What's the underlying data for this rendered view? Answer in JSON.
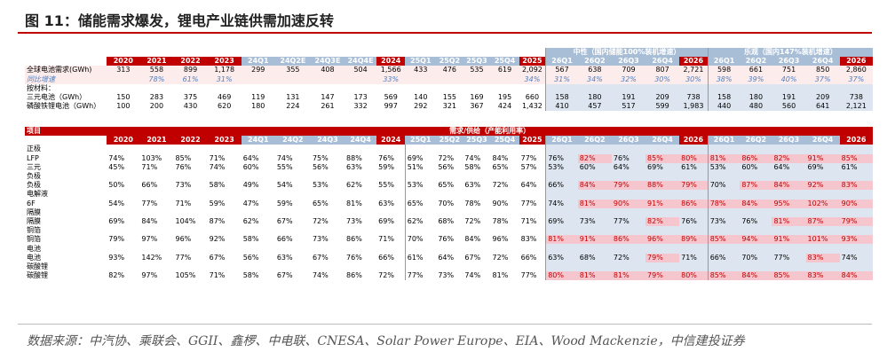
{
  "header": {
    "title": "图 11：储能需求爆发，锂电产业链供需加速反转"
  },
  "table1": {
    "group_headers": [
      "中性（国内储能100%装机增速）",
      "乐观（国内147%装机增速）"
    ],
    "columns": [
      "2020",
      "2021",
      "2022",
      "2023",
      "24Q1",
      "24Q2E",
      "24Q3E",
      "24Q4E",
      "2024",
      "25Q1",
      "25Q2",
      "25Q3",
      "25Q4",
      "2025",
      "26Q1",
      "26Q2",
      "26Q3",
      "26Q4",
      "2026",
      "26Q1",
      "26Q2",
      "26Q3",
      "26Q4",
      "2026"
    ],
    "year_columns": [
      0,
      1,
      2,
      3,
      8,
      13,
      18,
      23
    ],
    "rows": [
      {
        "label": "全球电池需求(GWh)",
        "cells": [
          "313",
          "558",
          "899",
          "1,178",
          "299",
          "355",
          "408",
          "504",
          "1,566",
          "433",
          "476",
          "535",
          "619",
          "2,092",
          "567",
          "638",
          "709",
          "807",
          "2,721",
          "598",
          "661",
          "751",
          "850",
          "2,860"
        ]
      },
      {
        "label": "同比增速",
        "cells": [
          null,
          "78%",
          "61%",
          "31%",
          null,
          null,
          null,
          null,
          "33%",
          null,
          null,
          null,
          null,
          "34%",
          "31%",
          "34%",
          "32%",
          "30%",
          "30%",
          "38%",
          "39%",
          "40%",
          "37%",
          "37%"
        ]
      },
      {
        "label": "按材料："
      },
      {
        "label": "三元电池（GWh）",
        "cells": [
          "150",
          "283",
          "375",
          "469",
          "119",
          "131",
          "147",
          "173",
          "569",
          "140",
          "155",
          "169",
          "195",
          "660",
          "158",
          "180",
          "191",
          "209",
          "738",
          "158",
          "180",
          "191",
          "209",
          "738"
        ]
      },
      {
        "label": "磷酸铁锂电池（GWh）",
        "cells": [
          "100",
          "200",
          "430",
          "620",
          "180",
          "224",
          "261",
          "332",
          "997",
          "292",
          "321",
          "367",
          "424",
          "1,432",
          "410",
          "457",
          "517",
          "599",
          "1,983",
          "440",
          "480",
          "560",
          "641",
          "2,121"
        ]
      }
    ]
  },
  "table2": {
    "header_label": "项目",
    "group_header": "需求/供给（产能利用率）",
    "columns": [
      "2020",
      "2021",
      "2022",
      "2023",
      "24Q1",
      "24Q2",
      "24Q3",
      "24Q4",
      "2024",
      "25Q1",
      "25Q2",
      "25Q3",
      "25Q4",
      "2025",
      "26Q1",
      "26Q2",
      "26Q3",
      "26Q4",
      "2026",
      "26Q1",
      "26Q2",
      "26Q3",
      "26Q4",
      "2026"
    ],
    "year_columns": [
      0,
      1,
      2,
      3,
      8,
      13,
      18,
      23
    ],
    "sections": [
      {
        "title": "正极",
        "rows": [
          {
            "label": "LFP",
            "cells": [
              "74%",
              "103%",
              "85%",
              "71%",
              "64%",
              "74%",
              "75%",
              "88%",
              "76%",
              "69%",
              "72%",
              "74%",
              "84%",
              "77%",
              "76%",
              "82%",
              "76%",
              "85%",
              "80%",
              "81%",
              "86%",
              "82%",
              "91%",
              "85%"
            ],
            "highlight": [
              15,
              17,
              18,
              19,
              20,
              21,
              22,
              23
            ]
          },
          {
            "label": "三元",
            "cells": [
              "45%",
              "71%",
              "76%",
              "74%",
              "60%",
              "55%",
              "56%",
              "63%",
              "59%",
              "51%",
              "56%",
              "58%",
              "65%",
              "57%",
              "53%",
              "60%",
              "64%",
              "69%",
              "61%",
              "53%",
              "60%",
              "64%",
              "69%",
              "61%"
            ],
            "highlight": []
          }
        ]
      },
      {
        "title": "负极",
        "rows": [
          {
            "label": "负极",
            "cells": [
              "50%",
              "66%",
              "73%",
              "58%",
              "49%",
              "54%",
              "53%",
              "62%",
              "55%",
              "53%",
              "65%",
              "63%",
              "72%",
              "64%",
              "66%",
              "84%",
              "79%",
              "88%",
              "79%",
              "70%",
              "87%",
              "84%",
              "92%",
              "83%"
            ],
            "highlight": [
              15,
              16,
              17,
              18,
              20,
              21,
              22,
              23
            ]
          }
        ]
      },
      {
        "title": "电解液",
        "rows": [
          {
            "label": "6F",
            "cells": [
              "54%",
              "77%",
              "71%",
              "59%",
              "47%",
              "59%",
              "65%",
              "81%",
              "63%",
              "65%",
              "70%",
              "78%",
              "90%",
              "77%",
              "74%",
              "81%",
              "90%",
              "91%",
              "86%",
              "78%",
              "84%",
              "95%",
              "102%",
              "90%"
            ],
            "highlight": [
              15,
              16,
              17,
              18,
              19,
              20,
              21,
              22,
              23
            ]
          }
        ]
      },
      {
        "title": "隔膜",
        "rows": [
          {
            "label": "隔膜",
            "cells": [
              "69%",
              "84%",
              "104%",
              "87%",
              "62%",
              "67%",
              "72%",
              "73%",
              "69%",
              "62%",
              "68%",
              "72%",
              "78%",
              "71%",
              "69%",
              "73%",
              "77%",
              "82%",
              "76%",
              "73%",
              "76%",
              "81%",
              "87%",
              "79%"
            ],
            "highlight": [
              17,
              21,
              22,
              23
            ]
          }
        ]
      },
      {
        "title": "铜箔",
        "rows": [
          {
            "label": "铜箔",
            "cells": [
              "79%",
              "97%",
              "96%",
              "92%",
              "58%",
              "66%",
              "73%",
              "86%",
              "71%",
              "70%",
              "76%",
              "84%",
              "96%",
              "83%",
              "81%",
              "91%",
              "86%",
              "96%",
              "89%",
              "85%",
              "94%",
              "91%",
              "101%",
              "93%"
            ],
            "highlight": [
              14,
              15,
              16,
              17,
              18,
              19,
              20,
              21,
              22,
              23
            ]
          }
        ]
      },
      {
        "title": "电池",
        "rows": [
          {
            "label": "电池",
            "cells": [
              "93%",
              "142%",
              "77%",
              "67%",
              "56%",
              "63%",
              "67%",
              "76%",
              "66%",
              "61%",
              "64%",
              "67%",
              "72%",
              "66%",
              "63%",
              "68%",
              "72%",
              "79%",
              "71%",
              "66%",
              "70%",
              "77%",
              "83%",
              "74%"
            ],
            "highlight": [
              17,
              22
            ]
          }
        ]
      },
      {
        "title": "碳酸锂",
        "rows": [
          {
            "label": "碳酸锂",
            "cells": [
              "82%",
              "97%",
              "105%",
              "71%",
              "58%",
              "67%",
              "74%",
              "86%",
              "72%",
              "77%",
              "73%",
              "74%",
              "81%",
              "77%",
              "80%",
              "81%",
              "81%",
              "79%",
              "80%",
              "85%",
              "84%",
              "85%",
              "83%",
              "84%"
            ],
            "highlight": [
              14,
              15,
              16,
              17,
              18,
              19,
              20,
              21,
              22,
              23
            ]
          }
        ]
      }
    ]
  },
  "footer": {
    "source": "数据来源：中汽协、乘联会、GGII、鑫椤、中电联、CNESA、Solar Power Europe、EIA、Wood Mackenzie，中信建投证券"
  }
}
